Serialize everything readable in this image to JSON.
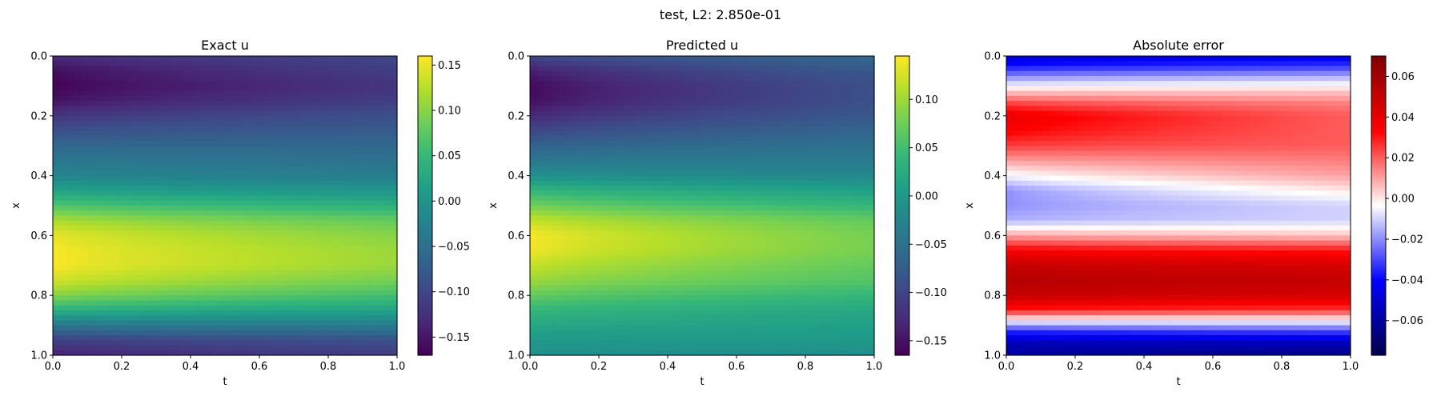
{
  "figure": {
    "suptitle": "test, L2: 2.850e-01"
  },
  "chart_data": [
    {
      "type": "heatmap",
      "title": "Exact u",
      "xlabel": "t",
      "ylabel": "x",
      "xlim": [
        0.0,
        1.0
      ],
      "ylim": [
        1.0,
        0.0
      ],
      "xticks": [
        "0.0",
        "0.2",
        "0.4",
        "0.6",
        "0.8",
        "1.0"
      ],
      "yticks": [
        "0.0",
        "0.2",
        "0.4",
        "0.6",
        "0.8",
        "1.0"
      ],
      "colormap": "viridis",
      "colorbar": {
        "range": [
          -0.17,
          0.16
        ],
        "ticks": [
          0.15,
          0.1,
          0.05,
          0.0,
          -0.05,
          -0.1,
          -0.15
        ],
        "ticklabels": [
          "0.15",
          "0.10",
          "0.05",
          "0.00",
          "−0.05",
          "−0.10",
          "−0.15"
        ]
      },
      "profile_by_x": {
        "x": [
          0.0,
          0.05,
          0.1,
          0.15,
          0.2,
          0.3,
          0.4,
          0.45,
          0.5,
          0.55,
          0.6,
          0.65,
          0.7,
          0.75,
          0.8,
          0.85,
          0.9,
          0.95,
          1.0
        ],
        "u_at_t0": [
          -0.13,
          -0.16,
          -0.17,
          -0.155,
          -0.12,
          -0.06,
          -0.02,
          0.02,
          0.07,
          0.12,
          0.15,
          0.16,
          0.16,
          0.14,
          0.1,
          0.04,
          -0.04,
          -0.11,
          -0.14
        ],
        "u_at_t1": [
          -0.1,
          -0.11,
          -0.12,
          -0.11,
          -0.09,
          -0.06,
          -0.03,
          0.0,
          0.04,
          0.08,
          0.1,
          0.11,
          0.11,
          0.09,
          0.06,
          0.02,
          -0.03,
          -0.09,
          -0.11
        ]
      }
    },
    {
      "type": "heatmap",
      "title": "Predicted u",
      "xlabel": "t",
      "ylabel": "x",
      "xlim": [
        0.0,
        1.0
      ],
      "ylim": [
        1.0,
        0.0
      ],
      "xticks": [
        "0.0",
        "0.2",
        "0.4",
        "0.6",
        "0.8",
        "1.0"
      ],
      "yticks": [
        "0.0",
        "0.2",
        "0.4",
        "0.6",
        "0.8",
        "1.0"
      ],
      "colormap": "viridis",
      "colorbar": {
        "range": [
          -0.165,
          0.145
        ],
        "ticks": [
          0.1,
          0.05,
          0.0,
          -0.05,
          -0.1,
          -0.15
        ],
        "ticklabels": [
          "0.10",
          "0.05",
          "0.00",
          "−0.05",
          "−0.10",
          "−0.15"
        ]
      },
      "profile_by_x": {
        "x": [
          0.0,
          0.05,
          0.1,
          0.15,
          0.2,
          0.3,
          0.4,
          0.45,
          0.5,
          0.55,
          0.6,
          0.65,
          0.7,
          0.75,
          0.8,
          0.85,
          0.9,
          0.95,
          1.0
        ],
        "u_at_t0": [
          -0.1,
          -0.14,
          -0.16,
          -0.155,
          -0.13,
          -0.07,
          -0.01,
          0.04,
          0.08,
          0.12,
          0.145,
          0.14,
          0.12,
          0.1,
          0.07,
          0.04,
          0.02,
          0.0,
          -0.01
        ],
        "u_at_t1": [
          -0.06,
          -0.08,
          -0.09,
          -0.09,
          -0.08,
          -0.05,
          -0.02,
          0.01,
          0.04,
          0.07,
          0.08,
          0.08,
          0.07,
          0.06,
          0.04,
          0.02,
          0.01,
          0.0,
          -0.01
        ]
      }
    },
    {
      "type": "heatmap",
      "title": "Absolute error",
      "xlabel": "t",
      "ylabel": "x",
      "xlim": [
        0.0,
        1.0
      ],
      "ylim": [
        1.0,
        0.0
      ],
      "xticks": [
        "0.0",
        "0.2",
        "0.4",
        "0.6",
        "0.8",
        "1.0"
      ],
      "yticks": [
        "0.0",
        "0.2",
        "0.4",
        "0.6",
        "0.8",
        "1.0"
      ],
      "colormap": "seismic",
      "colorbar": {
        "range": [
          -0.077,
          0.07
        ],
        "ticks": [
          0.06,
          0.04,
          0.02,
          0.0,
          -0.02,
          -0.04,
          -0.06
        ],
        "ticklabels": [
          "0.06",
          "0.04",
          "0.02",
          "0.00",
          "−0.02",
          "−0.04",
          "−0.06"
        ]
      },
      "profile_by_x": {
        "x": [
          0.0,
          0.04,
          0.08,
          0.12,
          0.16,
          0.2,
          0.25,
          0.3,
          0.35,
          0.4,
          0.45,
          0.5,
          0.55,
          0.6,
          0.65,
          0.7,
          0.75,
          0.8,
          0.85,
          0.88,
          0.92,
          0.96,
          1.0
        ],
        "err_at_t0": [
          -0.05,
          -0.035,
          -0.015,
          0.005,
          0.025,
          0.04,
          0.035,
          0.025,
          0.01,
          -0.005,
          -0.02,
          -0.02,
          -0.015,
          0.01,
          0.035,
          0.05,
          0.055,
          0.05,
          0.03,
          0.0,
          -0.035,
          -0.055,
          -0.06
        ],
        "err_at_t1": [
          -0.045,
          -0.03,
          -0.01,
          0.005,
          0.015,
          0.02,
          0.02,
          0.02,
          0.015,
          0.01,
          0.0,
          -0.01,
          -0.01,
          0.005,
          0.03,
          0.045,
          0.05,
          0.045,
          0.025,
          0.0,
          -0.03,
          -0.055,
          -0.065
        ]
      }
    }
  ]
}
